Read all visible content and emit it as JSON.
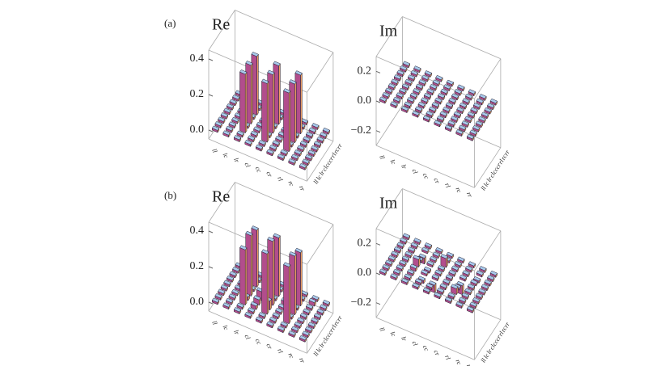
{
  "chart_data": [
    {
      "type": "bar3d",
      "panel_label": "(a)",
      "title": "Re",
      "categories": [
        "ll",
        "lc",
        "lr",
        "cl",
        "cc",
        "cr",
        "rl",
        "rc",
        "rr"
      ],
      "zlim": [
        -0.05,
        0.45
      ],
      "zticks": [
        {
          "value": 0,
          "label": "0.0"
        },
        {
          "value": 0.2,
          "label": "0.2"
        },
        {
          "value": 0.4,
          "label": "0.4"
        }
      ],
      "values": [
        [
          0,
          0,
          0,
          0,
          0,
          0,
          0,
          0,
          0
        ],
        [
          0,
          0,
          0,
          0,
          0,
          0,
          0,
          0,
          0
        ],
        [
          0,
          0,
          0.33,
          0,
          0.33,
          0,
          0.33,
          0,
          0
        ],
        [
          0,
          0,
          0,
          0,
          0,
          0,
          0,
          0,
          0
        ],
        [
          0,
          0,
          0.33,
          0,
          0.33,
          0,
          0.33,
          0,
          0
        ],
        [
          0,
          0,
          0,
          0,
          0,
          0,
          0,
          0,
          0
        ],
        [
          0,
          0,
          0.33,
          0,
          0.33,
          0,
          0.33,
          0,
          0
        ],
        [
          0,
          0,
          0,
          0,
          0,
          0,
          0,
          0,
          0
        ],
        [
          0,
          0,
          0,
          0,
          0,
          0,
          0,
          0,
          0
        ]
      ]
    },
    {
      "type": "bar3d",
      "title": "Im",
      "categories": [
        "ll",
        "lc",
        "lr",
        "cl",
        "cc",
        "cr",
        "rl",
        "rc",
        "rr"
      ],
      "zlim": [
        -0.3,
        0.3
      ],
      "zticks": [
        {
          "value": -0.2,
          "label": "−0.2"
        },
        {
          "value": 0,
          "label": "0.0"
        },
        {
          "value": 0.2,
          "label": "0.2"
        }
      ],
      "values": [
        [
          0,
          0,
          0,
          0,
          0,
          0,
          0,
          0,
          0
        ],
        [
          0,
          0,
          0,
          0,
          0,
          0,
          0,
          0,
          0
        ],
        [
          0,
          0,
          0,
          0,
          0,
          0,
          0,
          0,
          0
        ],
        [
          0,
          0,
          0,
          0,
          0,
          0,
          0,
          0,
          0
        ],
        [
          0,
          0,
          0,
          0,
          0,
          0,
          0,
          0,
          0
        ],
        [
          0,
          0,
          0,
          0,
          0,
          0,
          0,
          0,
          0
        ],
        [
          0,
          0,
          0,
          0,
          0,
          0,
          0,
          0,
          0
        ],
        [
          0,
          0,
          0,
          0,
          0,
          0,
          0,
          0,
          0
        ],
        [
          0,
          0,
          0,
          0,
          0,
          0,
          0,
          0,
          0
        ]
      ]
    },
    {
      "type": "bar3d",
      "panel_label": "(b)",
      "title": "Re",
      "categories": [
        "ll",
        "lc",
        "lr",
        "cl",
        "cc",
        "cr",
        "rl",
        "rc",
        "rr"
      ],
      "zlim": [
        -0.05,
        0.45
      ],
      "zticks": [
        {
          "value": 0,
          "label": "0.0"
        },
        {
          "value": 0.2,
          "label": "0.2"
        },
        {
          "value": 0.4,
          "label": "0.4"
        }
      ],
      "values": [
        [
          0.01,
          0,
          0,
          0,
          0,
          0,
          0,
          0,
          0
        ],
        [
          0,
          0.01,
          0,
          0,
          0,
          0,
          0,
          0,
          0
        ],
        [
          0,
          0,
          0.31,
          0.02,
          0.34,
          0,
          0.32,
          0.01,
          0
        ],
        [
          0,
          0,
          0.02,
          0.03,
          0.05,
          0,
          0.01,
          0,
          0
        ],
        [
          0,
          0,
          0.34,
          0.05,
          0.36,
          0.01,
          0.33,
          0,
          0
        ],
        [
          0,
          0,
          0,
          0,
          0.01,
          0.02,
          0,
          0,
          0
        ],
        [
          0,
          0,
          0.32,
          0.01,
          0.33,
          0,
          0.3,
          0.01,
          0
        ],
        [
          0,
          0,
          0.01,
          0,
          0,
          0,
          0.01,
          0.02,
          0
        ],
        [
          0,
          0,
          0,
          0,
          0,
          0,
          0,
          0,
          0.01
        ]
      ]
    },
    {
      "type": "bar3d",
      "title": "Im",
      "categories": [
        "ll",
        "lc",
        "lr",
        "cl",
        "cc",
        "cr",
        "rl",
        "rc",
        "rr"
      ],
      "zlim": [
        -0.3,
        0.3
      ],
      "zticks": [
        {
          "value": -0.2,
          "label": "−0.2"
        },
        {
          "value": 0,
          "label": "0.0"
        },
        {
          "value": 0.2,
          "label": "0.2"
        }
      ],
      "values": [
        [
          0,
          0,
          0,
          0,
          0,
          0,
          0,
          0,
          0
        ],
        [
          0,
          0,
          0,
          0,
          0,
          0,
          0,
          0,
          0
        ],
        [
          0,
          0,
          0,
          0.02,
          0.05,
          0,
          -0.04,
          0,
          0
        ],
        [
          0,
          0,
          -0.02,
          0,
          -0.01,
          0,
          0,
          0,
          0
        ],
        [
          0,
          0,
          -0.05,
          0.01,
          0,
          0,
          0.06,
          0,
          0
        ],
        [
          0,
          0,
          0,
          0,
          0,
          0,
          0,
          0,
          0
        ],
        [
          0,
          0,
          0.04,
          0,
          -0.06,
          0,
          0,
          0.01,
          0
        ],
        [
          0,
          0,
          0,
          0,
          0,
          0,
          -0.01,
          0,
          0
        ],
        [
          0,
          0,
          0,
          0,
          0,
          0,
          0,
          0,
          0
        ]
      ]
    }
  ]
}
